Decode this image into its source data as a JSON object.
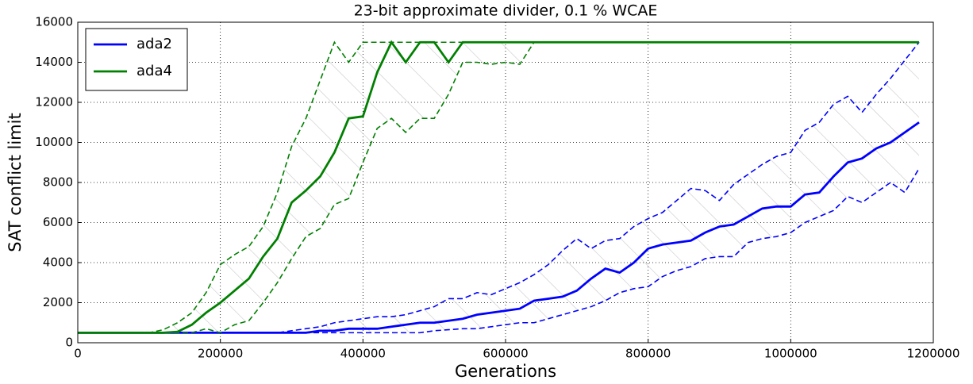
{
  "chart_data": {
    "type": "line",
    "title": "23-bit approximate divider, 0.1 % WCAE",
    "xlabel": "Generations",
    "ylabel": "SAT conflict limit",
    "xlim": [
      0,
      1200000
    ],
    "ylim": [
      0,
      16000
    ],
    "xticks": [
      0,
      200000,
      400000,
      600000,
      800000,
      1000000,
      1200000
    ],
    "yticks": [
      0,
      2000,
      4000,
      6000,
      8000,
      10000,
      12000,
      14000,
      16000
    ],
    "grid": true,
    "legend": "upper left",
    "x": [
      0,
      20000,
      40000,
      60000,
      80000,
      100000,
      120000,
      140000,
      160000,
      180000,
      200000,
      220000,
      240000,
      260000,
      280000,
      300000,
      320000,
      340000,
      360000,
      380000,
      400000,
      420000,
      440000,
      460000,
      480000,
      500000,
      520000,
      540000,
      560000,
      580000,
      600000,
      620000,
      640000,
      660000,
      680000,
      700000,
      720000,
      740000,
      760000,
      780000,
      800000,
      820000,
      840000,
      860000,
      880000,
      900000,
      920000,
      940000,
      960000,
      980000,
      1000000,
      1020000,
      1040000,
      1060000,
      1080000,
      1100000,
      1120000,
      1140000,
      1160000,
      1180000
    ],
    "series": [
      {
        "name": "ada2",
        "color": "#0000ff",
        "values": [
          500,
          500,
          500,
          500,
          500,
          500,
          500,
          500,
          500,
          500,
          500,
          500,
          500,
          500,
          500,
          500,
          500,
          600,
          600,
          700,
          700,
          700,
          800,
          900,
          1000,
          1000,
          1100,
          1200,
          1400,
          1500,
          1600,
          1700,
          2100,
          2200,
          2300,
          2600,
          3200,
          3700,
          3500,
          4000,
          4700,
          4900,
          5000,
          5100,
          5500,
          5800,
          5900,
          6300,
          6700,
          6800,
          6800,
          7400,
          7500,
          8300,
          9000,
          9200,
          9700,
          10000,
          10500,
          11000
        ],
        "upper": [
          500,
          500,
          500,
          500,
          500,
          500,
          500,
          500,
          500,
          500,
          500,
          500,
          500,
          500,
          500,
          600,
          700,
          800,
          1000,
          1100,
          1200,
          1300,
          1300,
          1400,
          1600,
          1800,
          2200,
          2200,
          2500,
          2400,
          2700,
          3000,
          3400,
          3900,
          4600,
          5200,
          4700,
          5100,
          5200,
          5800,
          6200,
          6500,
          7100,
          7700,
          7600,
          7100,
          7900,
          8400,
          8900,
          9300,
          9500,
          10600,
          11000,
          11900,
          12300,
          11500,
          12400,
          13200,
          14100,
          15000
        ],
        "lower": [
          500,
          500,
          500,
          500,
          500,
          500,
          500,
          500,
          500,
          500,
          500,
          500,
          500,
          500,
          500,
          500,
          500,
          500,
          500,
          500,
          500,
          500,
          500,
          500,
          500,
          600,
          650,
          700,
          700,
          800,
          900,
          1000,
          1000,
          1200,
          1400,
          1600,
          1800,
          2100,
          2500,
          2700,
          2800,
          3300,
          3600,
          3800,
          4200,
          4300,
          4300,
          5000,
          5200,
          5300,
          5500,
          6000,
          6300,
          6600,
          7300,
          7000,
          7500,
          8000,
          7500,
          8700
        ]
      },
      {
        "name": "ada4",
        "color": "#008000",
        "values": [
          500,
          500,
          500,
          500,
          500,
          500,
          500,
          550,
          900,
          1500,
          2000,
          2600,
          3200,
          4300,
          5200,
          7000,
          7600,
          8300,
          9500,
          11200,
          11300,
          13500,
          15000,
          14000,
          15000,
          15000,
          14000,
          15000,
          15000,
          15000,
          15000,
          15000,
          15000,
          15000,
          15000,
          15000,
          15000,
          15000,
          15000,
          15000,
          15000,
          15000,
          15000,
          15000,
          15000,
          15000,
          15000,
          15000,
          15000,
          15000,
          15000,
          15000,
          15000,
          15000,
          15000,
          15000,
          15000,
          15000,
          15000,
          15000
        ],
        "upper": [
          500,
          500,
          500,
          500,
          500,
          500,
          650,
          1000,
          1500,
          2500,
          3900,
          4400,
          4800,
          5800,
          7500,
          9800,
          11200,
          13100,
          15000,
          14000,
          15000,
          15000,
          15000,
          15000,
          15000,
          15000,
          15000,
          15000,
          15000,
          15000,
          15000,
          15000,
          15000,
          15000,
          15000,
          15000,
          15000,
          15000,
          15000,
          15000,
          15000,
          15000,
          15000,
          15000,
          15000,
          15000,
          15000,
          15000,
          15000,
          15000,
          15000,
          15000,
          15000,
          15000,
          15000,
          15000,
          15000,
          15000,
          15000,
          15000
        ],
        "lower": [
          500,
          500,
          500,
          500,
          500,
          500,
          500,
          500,
          500,
          700,
          500,
          900,
          1100,
          2000,
          3000,
          4200,
          5300,
          5700,
          6900,
          7200,
          9000,
          10700,
          11200,
          10500,
          11200,
          11200,
          12400,
          14000,
          14000,
          13900,
          14000,
          13900,
          15000,
          15000,
          15000,
          15000,
          15000,
          15000,
          15000,
          15000,
          15000,
          15000,
          15000,
          15000,
          15000,
          15000,
          15000,
          15000,
          15000,
          15000,
          15000,
          15000,
          15000,
          15000,
          15000,
          15000,
          15000,
          15000,
          15000,
          15000
        ]
      }
    ]
  }
}
